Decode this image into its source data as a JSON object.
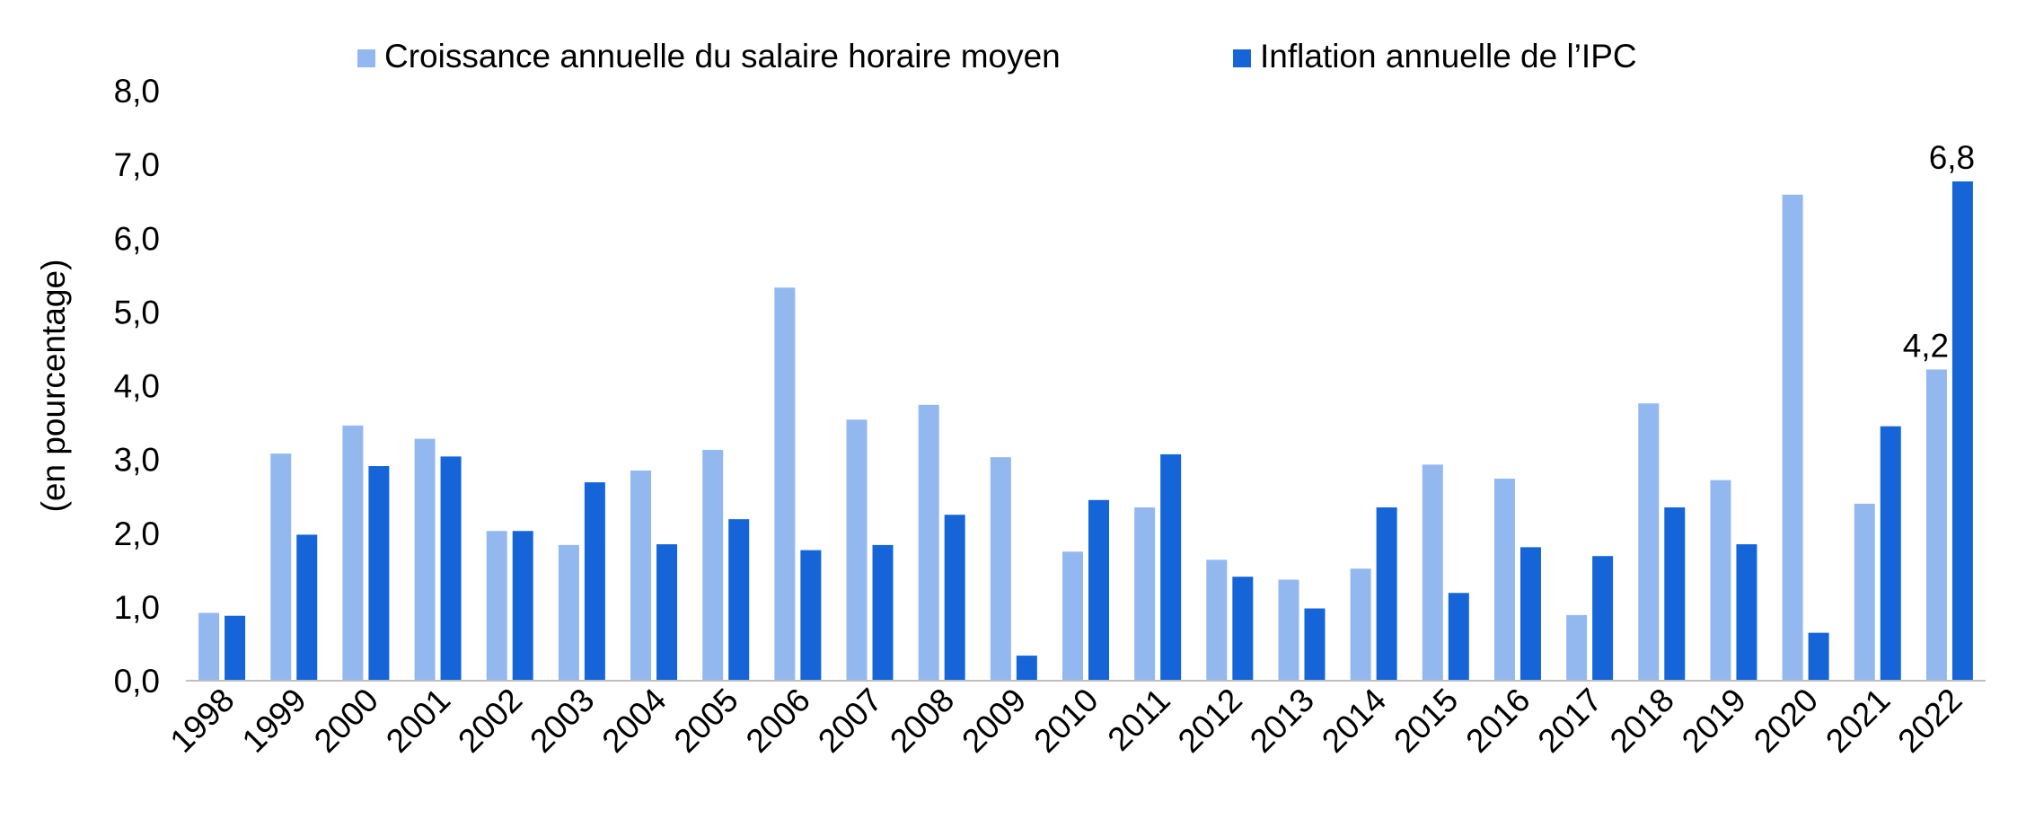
{
  "chart_data": {
    "type": "bar",
    "title": "",
    "xlabel": "",
    "ylabel": "(en pourcentage)",
    "ylim": [
      0,
      8
    ],
    "yticks": [
      0,
      1,
      2,
      3,
      4,
      5,
      6,
      7,
      8
    ],
    "ytick_labels": [
      "0,0",
      "1,0",
      "2,0",
      "3,0",
      "4,0",
      "5,0",
      "6,0",
      "7,0",
      "8,0"
    ],
    "grid": false,
    "legend_position": "top",
    "categories": [
      "1998",
      "1999",
      "2000",
      "2001",
      "2002",
      "2003",
      "2004",
      "2005",
      "2006",
      "2007",
      "2008",
      "2009",
      "2010",
      "2011",
      "2012",
      "2013",
      "2014",
      "2015",
      "2016",
      "2017",
      "2018",
      "2019",
      "2020",
      "2021",
      "2022"
    ],
    "series": [
      {
        "name": "Croissance annuelle du salaire horaire moyen",
        "color": "#93b8f0",
        "values": [
          0.92,
          3.08,
          3.46,
          3.28,
          2.03,
          1.84,
          2.85,
          3.13,
          5.33,
          3.54,
          3.74,
          3.03,
          1.75,
          2.35,
          1.64,
          1.37,
          1.52,
          2.93,
          2.74,
          0.89,
          3.76,
          2.72,
          6.59,
          2.4,
          4.22
        ]
      },
      {
        "name": "Inflation annuelle de l’IPC",
        "color": "#1565d8",
        "values": [
          0.88,
          1.98,
          2.91,
          3.04,
          2.03,
          2.69,
          1.85,
          2.19,
          1.77,
          1.84,
          2.25,
          0.34,
          2.45,
          3.07,
          1.41,
          0.98,
          2.35,
          1.19,
          1.81,
          1.69,
          2.35,
          1.85,
          0.65,
          3.45,
          6.77
        ]
      }
    ],
    "data_labels": [
      {
        "series_index": 0,
        "category": "2022",
        "text": "4,2"
      },
      {
        "series_index": 1,
        "category": "2022",
        "text": "6,8"
      }
    ]
  }
}
